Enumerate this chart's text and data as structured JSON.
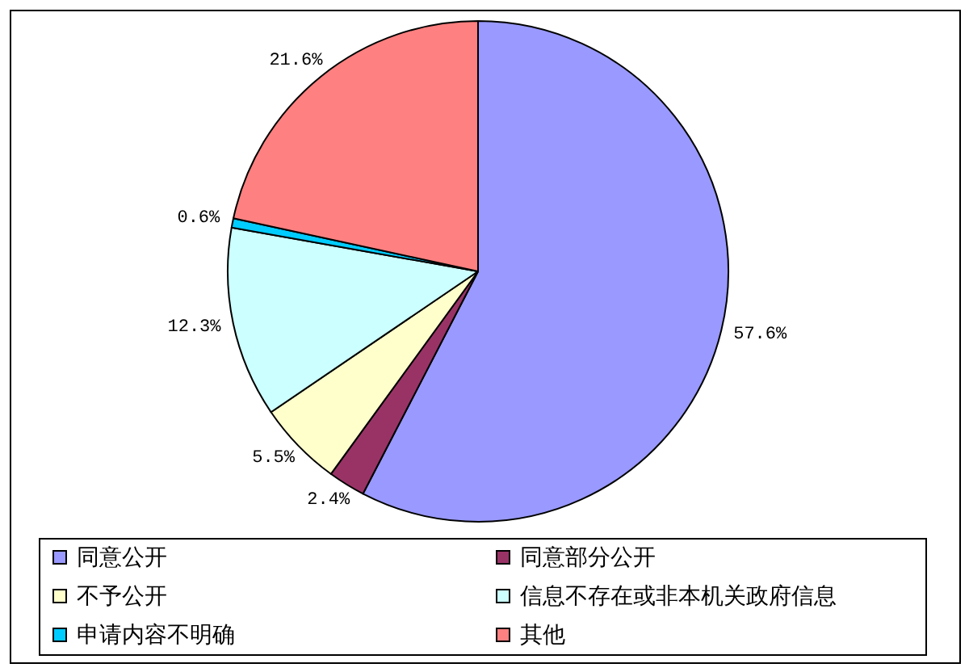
{
  "chart_data": {
    "type": "pie",
    "categories": [
      "同意公开",
      "同意部分公开",
      "不予公开",
      "信息不存在或非本机关政府信息",
      "申请内容不明确",
      "其他"
    ],
    "values": [
      57.6,
      2.4,
      5.5,
      12.3,
      0.6,
      21.6
    ],
    "colors": [
      "#9999ff",
      "#993366",
      "#ffffcc",
      "#ccffff",
      "#00ccff",
      "#ff8080"
    ],
    "value_labels": [
      "57.6%",
      "2.4%",
      "5.5%",
      "12.3%",
      "0.6%",
      "21.6%"
    ],
    "legend": "bottom"
  }
}
